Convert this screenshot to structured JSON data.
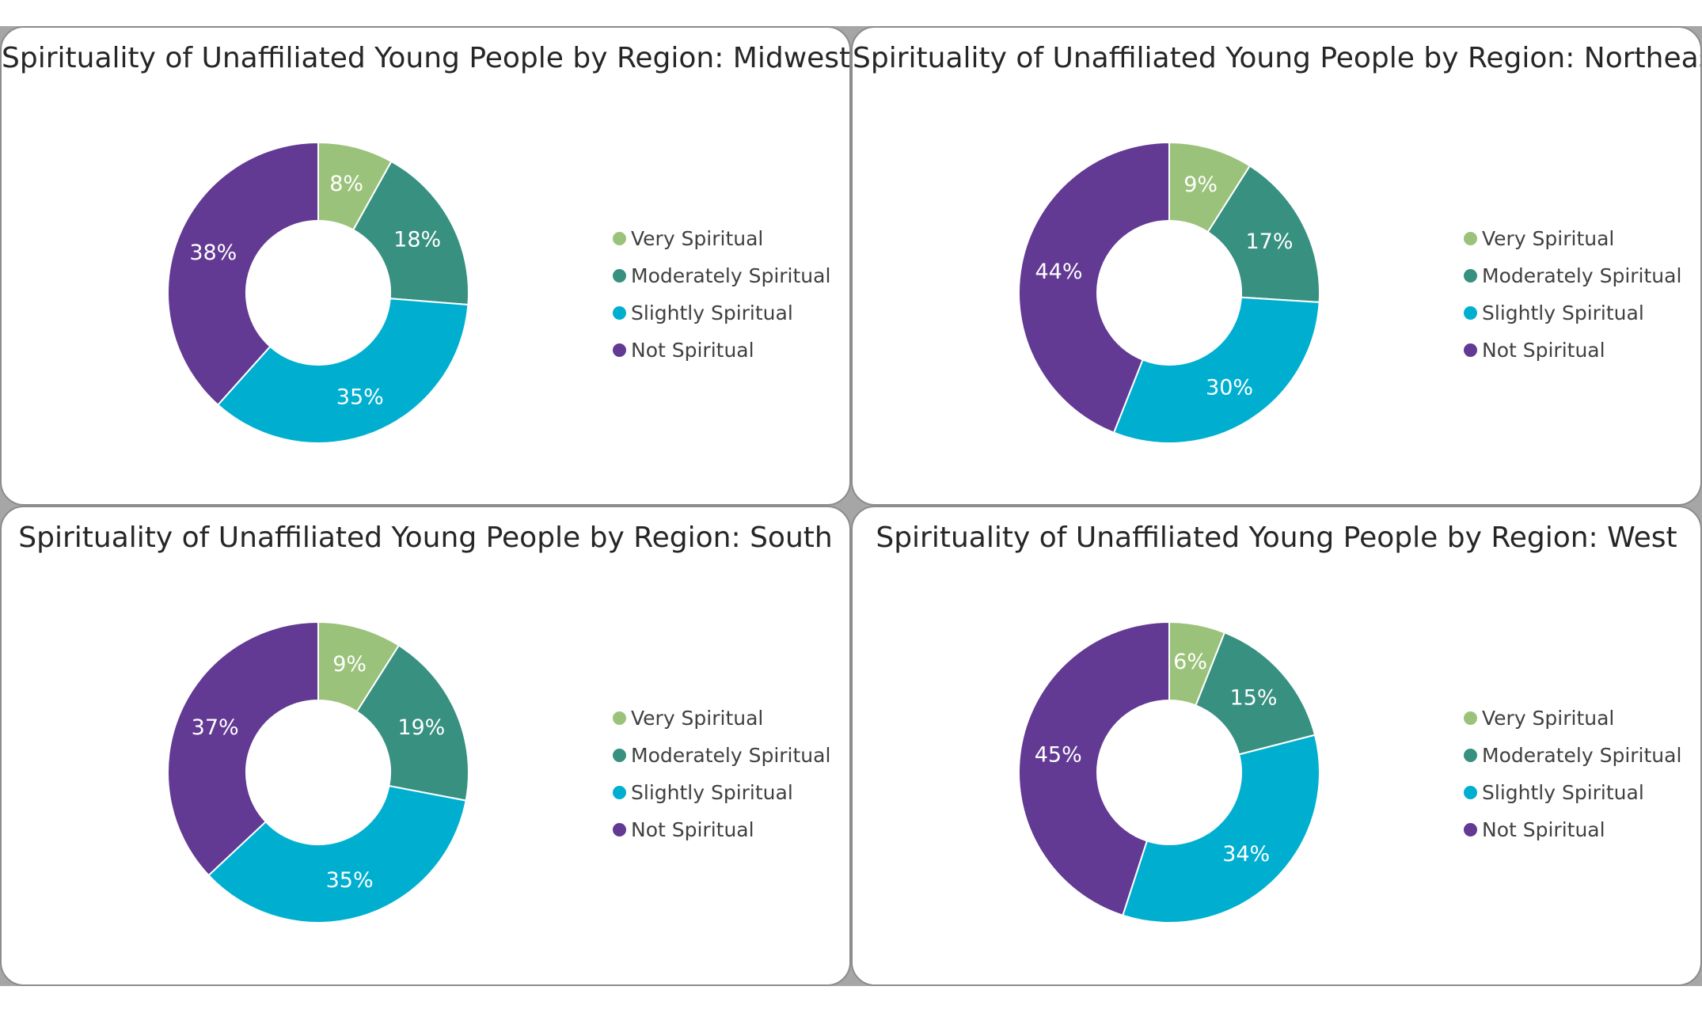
{
  "colors": {
    "very": "#9bc27a",
    "moderately": "#389080",
    "slightly": "#00afd0",
    "not": "#623993"
  },
  "chart_data": [
    {
      "type": "pie",
      "title": "Spirituality of Unaffiliated Young People by Region: Midwest",
      "categories": [
        "Very Spiritual",
        "Moderately Spiritual",
        "Slightly Spiritual",
        "Not Spiritual"
      ],
      "values": [
        8,
        18,
        35,
        38
      ],
      "labels": [
        "8%",
        "18%",
        "35%",
        "38%"
      ],
      "legend_position": "right"
    },
    {
      "type": "pie",
      "title": "Spirituality of Unaffiliated Young People by Region: Northeast",
      "categories": [
        "Very Spiritual",
        "Moderately Spiritual",
        "Slightly Spiritual",
        "Not Spiritual"
      ],
      "values": [
        9,
        17,
        30,
        44
      ],
      "labels": [
        "9%",
        "17%",
        "30%",
        "44%"
      ],
      "legend_position": "right"
    },
    {
      "type": "pie",
      "title": "Spirituality of Unaffiliated Young People by Region: South",
      "categories": [
        "Very Spiritual",
        "Moderately Spiritual",
        "Slightly Spiritual",
        "Not Spiritual"
      ],
      "values": [
        9,
        19,
        35,
        37
      ],
      "labels": [
        "9%",
        "19%",
        "35%",
        "37%"
      ],
      "legend_position": "right"
    },
    {
      "type": "pie",
      "title": "Spirituality of Unaffiliated Young People by Region: West",
      "categories": [
        "Very Spiritual",
        "Moderately Spiritual",
        "Slightly Spiritual",
        "Not Spiritual"
      ],
      "values": [
        6,
        15,
        34,
        45
      ],
      "labels": [
        "6%",
        "15%",
        "34%",
        "45%"
      ],
      "legend_position": "right"
    }
  ]
}
